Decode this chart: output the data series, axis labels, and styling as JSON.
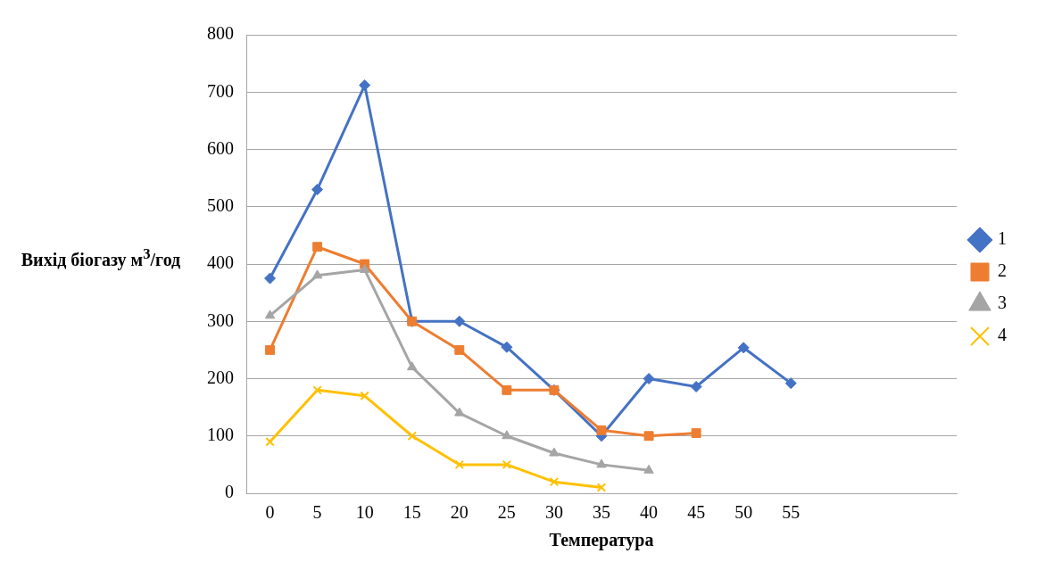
{
  "chart_data": {
    "type": "line",
    "xlabel": "Температура",
    "ylabel": "Вихід біогазу м$^{3}$/год",
    "categories": [
      "0",
      "5",
      "10",
      "15",
      "20",
      "25",
      "30",
      "35",
      "40",
      "45",
      "50",
      "55",
      null,
      null,
      null
    ],
    "series": [
      {
        "name": "1",
        "color": "#4472c4",
        "marker": "diamond",
        "values": [
          375,
          530,
          712,
          300,
          300,
          255,
          180,
          100,
          200,
          186,
          254,
          192,
          null,
          null,
          null
        ]
      },
      {
        "name": "2",
        "color": "#ed7d31",
        "marker": "square",
        "values": [
          250,
          430,
          400,
          300,
          250,
          180,
          180,
          110,
          100,
          105,
          null,
          null,
          null,
          null,
          null
        ]
      },
      {
        "name": "3",
        "color": "#a5a5a5",
        "marker": "triangle",
        "values": [
          310,
          380,
          390,
          220,
          140,
          100,
          70,
          50,
          40,
          null,
          null,
          null,
          null,
          null,
          null
        ]
      },
      {
        "name": "4",
        "color": "#ffc000",
        "marker": "cross",
        "values": [
          90,
          180,
          170,
          100,
          50,
          50,
          20,
          10,
          null,
          null,
          null,
          null,
          null,
          null,
          null
        ]
      }
    ],
    "ylim": [
      0,
      800
    ],
    "yticks": [
      0,
      100,
      200,
      300,
      400,
      500,
      600,
      700,
      800
    ],
    "grid": "y",
    "legend": "right"
  }
}
